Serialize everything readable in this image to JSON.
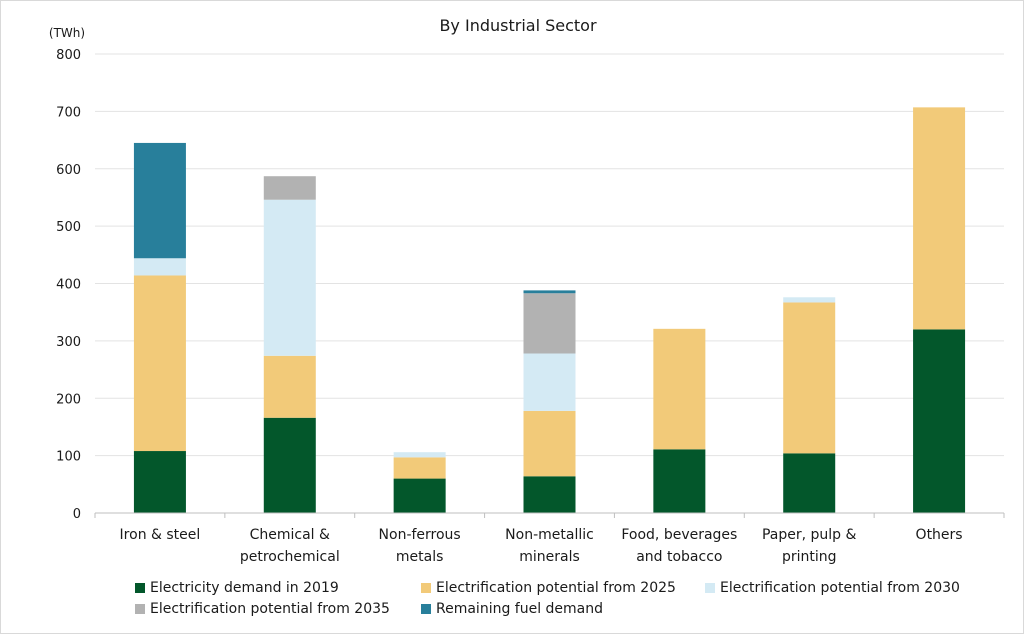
{
  "chart_data": {
    "type": "bar",
    "stacked": true,
    "title": "By Industrial Sector",
    "unit_label": "(TWh)",
    "ylim": [
      0,
      800
    ],
    "yticks": [
      "0",
      "100",
      "200",
      "300",
      "400",
      "500",
      "600",
      "700",
      "800"
    ],
    "grid": true,
    "legend_position": "bottom",
    "categories": [
      [
        "Iron & steel"
      ],
      [
        "Chemical &",
        "petrochemical"
      ],
      [
        "Non-ferrous",
        "metals"
      ],
      [
        "Non-metallic",
        "minerals"
      ],
      [
        "Food, beverages",
        "and tobacco"
      ],
      [
        "Paper, pulp &",
        "printing"
      ],
      [
        "Others"
      ]
    ],
    "series": [
      {
        "name": "Electricity demand in 2019",
        "color": "#03572b",
        "values": [
          108,
          166,
          60,
          64,
          111,
          104,
          320
        ]
      },
      {
        "name": "Electrification potential from 2025",
        "color": "#f2ca79",
        "values": [
          306,
          108,
          37,
          114,
          210,
          263,
          387
        ]
      },
      {
        "name": "Electrification potential from 2030",
        "color": "#d4eaf4",
        "values": [
          30,
          272,
          9,
          100,
          0,
          9,
          0
        ]
      },
      {
        "name": "Electrification potential from 2035",
        "color": "#b2b2b2",
        "values": [
          0,
          41,
          0,
          105,
          0,
          0,
          0
        ]
      },
      {
        "name": "Remaining fuel demand",
        "color": "#287f9b",
        "values": [
          201,
          0,
          0,
          5,
          0,
          0,
          0
        ]
      }
    ]
  }
}
